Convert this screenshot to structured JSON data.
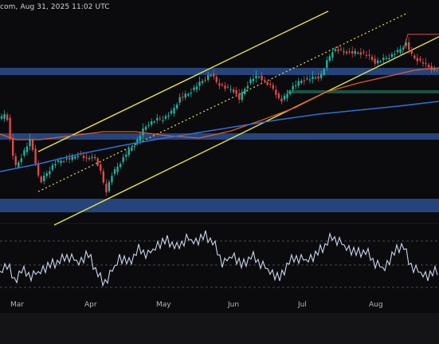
{
  "header": {
    "text": "com, Aug 31, 2025 11:02 UTC"
  },
  "colors": {
    "background": "#0b0b0d",
    "zone": "#2a4f8f",
    "channel": "#e8e24a",
    "ma_fast": "#e05a2b",
    "ma_slow": "#2f6fd8",
    "rsi": "#c9d6f0",
    "up": "#20b2a0",
    "down": "#e04848",
    "rsi_level": "#5a5d66"
  },
  "chart_data": {
    "type": "candlestick",
    "x_axis": {
      "tick_labels": [
        "Mar",
        "Apr",
        "May",
        "Jun",
        "Jul",
        "Aug"
      ]
    },
    "price_zones": [
      "upper-resistance",
      "middle-support",
      "lower-support"
    ],
    "channel_lines": [
      "upper-channel",
      "mid-channel",
      "lower-channel"
    ],
    "moving_averages": [
      "ma-fast",
      "ma-slow"
    ],
    "grid": false,
    "legend": "none",
    "rsi_panel": {
      "levels": [
        "overbought",
        "midline",
        "oversold"
      ]
    }
  }
}
